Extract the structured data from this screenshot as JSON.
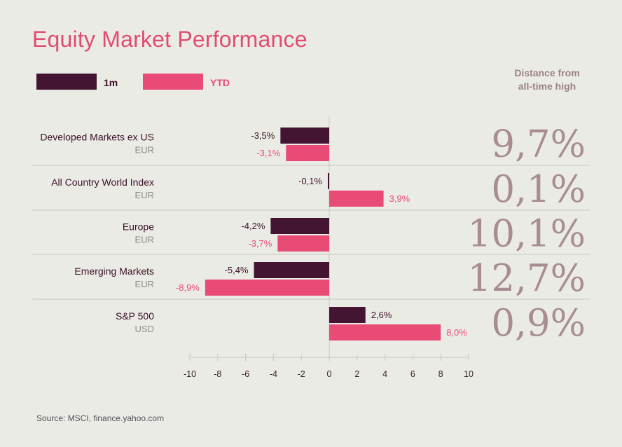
{
  "title": "Equity Market Performance",
  "legend": [
    {
      "label": "1m",
      "color": "#431532"
    },
    {
      "label": "YTD",
      "color": "#e84c76"
    }
  ],
  "distance_header": [
    "Distance from",
    "all-time high"
  ],
  "source": "Source: MSCI, finance.yahoo.com",
  "chart_data": {
    "type": "bar",
    "orientation": "horizontal",
    "categories": [
      {
        "name": "Developed Markets ex US",
        "currency": "EUR"
      },
      {
        "name": "All Country World Index",
        "currency": "EUR"
      },
      {
        "name": "Europe",
        "currency": "EUR"
      },
      {
        "name": "Emerging Markets",
        "currency": "EUR"
      },
      {
        "name": "S&P 500",
        "currency": "USD"
      }
    ],
    "series": [
      {
        "name": "1m",
        "color": "#431532",
        "label_color": "#3a1026",
        "values": [
          -3.5,
          -0.1,
          -4.2,
          -5.4,
          2.6
        ],
        "labels": [
          "-3,5%",
          "-0,1%",
          "-4,2%",
          "-5,4%",
          "2,6%"
        ]
      },
      {
        "name": "YTD",
        "color": "#e84c76",
        "label_color": "#e84c76",
        "values": [
          -3.1,
          3.9,
          -3.7,
          -8.9,
          8.0
        ],
        "labels": [
          "-3,1%",
          "3,9%",
          "-3,7%",
          "-8,9%",
          "8,0%"
        ]
      }
    ],
    "distance_from_ath": [
      "9,7%",
      "0,1%",
      "10,1%",
      "12,7%",
      "0,9%"
    ],
    "xlim": [
      -10,
      10
    ],
    "xticks": [
      -10,
      -8,
      -6,
      -4,
      -2,
      0,
      2,
      4,
      6,
      8,
      10
    ],
    "grid": false
  }
}
